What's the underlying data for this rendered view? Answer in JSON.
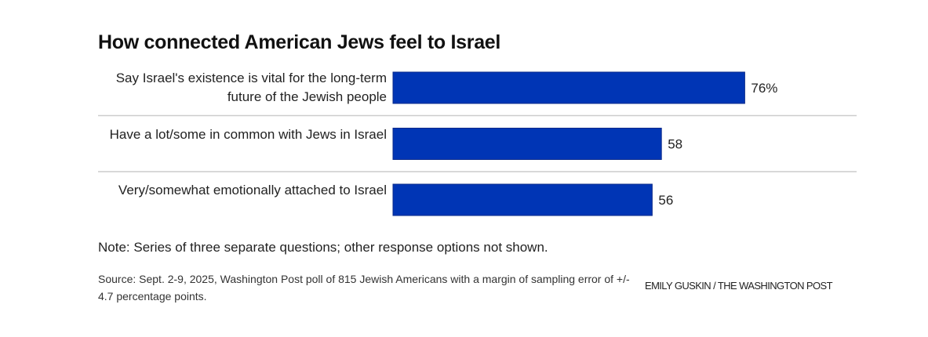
{
  "chart_data": {
    "type": "bar",
    "orientation": "horizontal",
    "title": "How connected American Jews feel to Israel",
    "categories": [
      "Say Israel's existence is vital for the long-term future of the Jewish people",
      "Have a lot/some in common with Jews in Israel",
      "Very/somewhat emotionally attached to Israel"
    ],
    "values": [
      76,
      58,
      56
    ],
    "value_labels": [
      "76%",
      "58",
      "56"
    ],
    "xlim": [
      0,
      100
    ],
    "bar_color": "#0035b5",
    "grid": false
  },
  "note": "Note: Series of three separate questions; other response options not shown.",
  "source": "Source: Sept. 2-9, 2025, Washington Post poll of 815 Jewish Americans with a margin of sampling error of +/- 4.7 percentage points.",
  "credit": "EMILY GUSKIN / THE WASHINGTON POST"
}
